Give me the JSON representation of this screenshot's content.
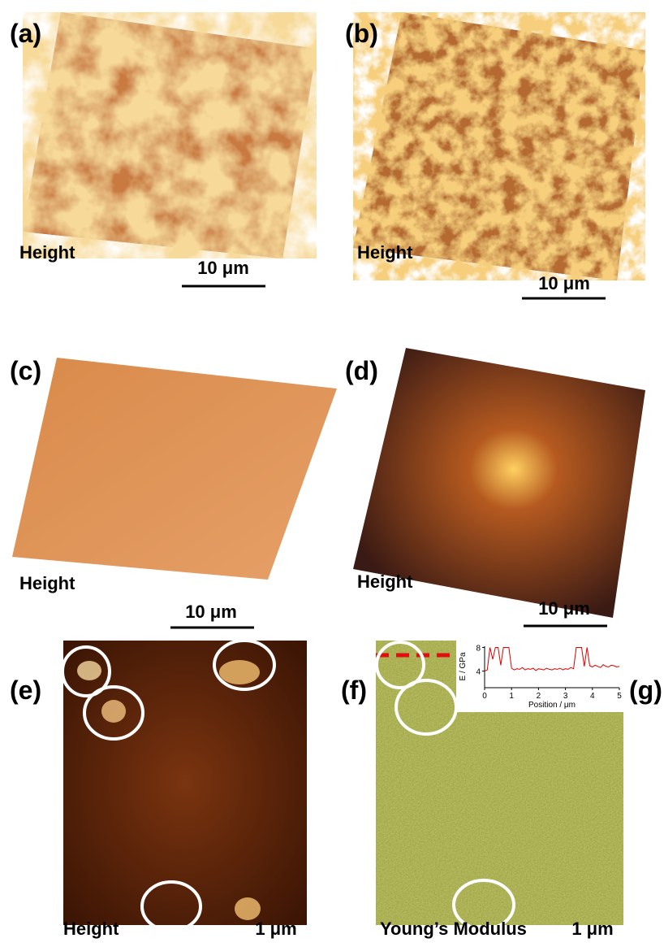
{
  "panels": [
    {
      "label": "(a)",
      "caption": "Height",
      "scale": "10 μm"
    },
    {
      "label": "(b)",
      "caption": "Height",
      "scale": "10 μm"
    },
    {
      "label": "(c)",
      "caption": "Height",
      "scale": "10 μm"
    },
    {
      "label": "(d)",
      "caption": "Height",
      "scale": "10 μm"
    },
    {
      "label": "(e)",
      "caption": "Height",
      "scale": "1 μm"
    },
    {
      "label": "(f)",
      "caption": "Young’s Modulus",
      "scale": "1 μm"
    }
  ],
  "extra_label": "(g)",
  "chart_data": {
    "type": "line",
    "xlabel": "Position / μm",
    "ylabel": "E / GPa",
    "color": "#e00000",
    "x": [
      0,
      0.1,
      0.2,
      0.3,
      0.4,
      0.5,
      0.6,
      0.7,
      0.8,
      0.9,
      1,
      1.1,
      1.2,
      1.3,
      1.4,
      1.5,
      1.6,
      1.7,
      1.8,
      1.9,
      2,
      2.1,
      2.2,
      2.3,
      2.4,
      2.5,
      2.6,
      2.7,
      2.8,
      2.9,
      3,
      3.1,
      3.2,
      3.3,
      3.4,
      3.5,
      3.6,
      3.7,
      3.8,
      3.9,
      4,
      4.1,
      4.2,
      4.3,
      4.4,
      4.5,
      4.6,
      4.7,
      4.8,
      4.9,
      5
    ],
    "values": [
      4,
      4.2,
      8,
      6,
      8,
      8,
      5,
      8,
      8,
      8,
      4.5,
      4.2,
      4.4,
      4.3,
      4.6,
      4.2,
      4.4,
      4.3,
      4.5,
      4.1,
      4.4,
      4.3,
      4.2,
      4.5,
      4.3,
      4.2,
      4.4,
      4.3,
      4.5,
      4.2,
      4.4,
      4.3,
      4.6,
      4.4,
      8,
      8,
      8,
      4.8,
      8,
      4.9,
      4.7,
      5,
      4.8,
      4.6,
      5.1,
      4.8,
      4.7,
      5,
      4.9,
      4.7,
      4.8
    ],
    "xlim": [
      0,
      5
    ],
    "ylim": [
      1.2,
      8.2
    ],
    "xticks": [
      0,
      1,
      2,
      3,
      4,
      5
    ],
    "yticks": [
      4,
      8
    ]
  }
}
